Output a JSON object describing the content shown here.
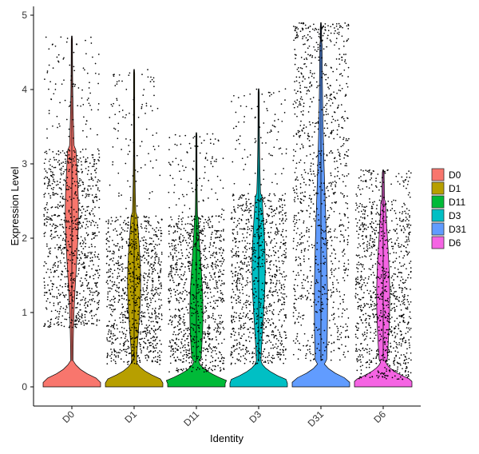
{
  "chart_data": {
    "type": "violin",
    "title": "",
    "xlabel": "Identity",
    "ylabel": "Expression Level",
    "ylim": [
      0,
      5
    ],
    "yticks": [
      0,
      1,
      2,
      3,
      4,
      5
    ],
    "categories": [
      "D0",
      "D1",
      "D11",
      "D3",
      "D31",
      "D6"
    ],
    "legend_position": "right",
    "grid": false,
    "jitter_points": true,
    "series": [
      {
        "name": "D0",
        "color": "#F8766D",
        "max": 4.72,
        "main_min": 0.8,
        "main_max": 3.2,
        "mode": 2.35,
        "median_line": true
      },
      {
        "name": "D1",
        "color": "#B79F00",
        "max": 4.27,
        "main_min": 0.3,
        "main_max": 2.3,
        "mode": 1.4
      },
      {
        "name": "D11",
        "color": "#00BA38",
        "max": 3.42,
        "main_min": 0.2,
        "main_max": 2.3,
        "mode": 1.0
      },
      {
        "name": "D3",
        "color": "#00BFC4",
        "max": 4.01,
        "main_min": 0.3,
        "main_max": 2.6,
        "mode": 1.6
      },
      {
        "name": "D31",
        "color": "#619CFF",
        "max": 4.9,
        "main_min": 0.35,
        "main_max": 4.6,
        "mode": 1.1
      },
      {
        "name": "D6",
        "color": "#F564E3",
        "max": 2.92,
        "main_min": 0.1,
        "main_max": 2.5,
        "mode": 1.2
      }
    ],
    "legend": {
      "items": [
        "D0",
        "D1",
        "D11",
        "D3",
        "D31",
        "D6"
      ]
    }
  }
}
